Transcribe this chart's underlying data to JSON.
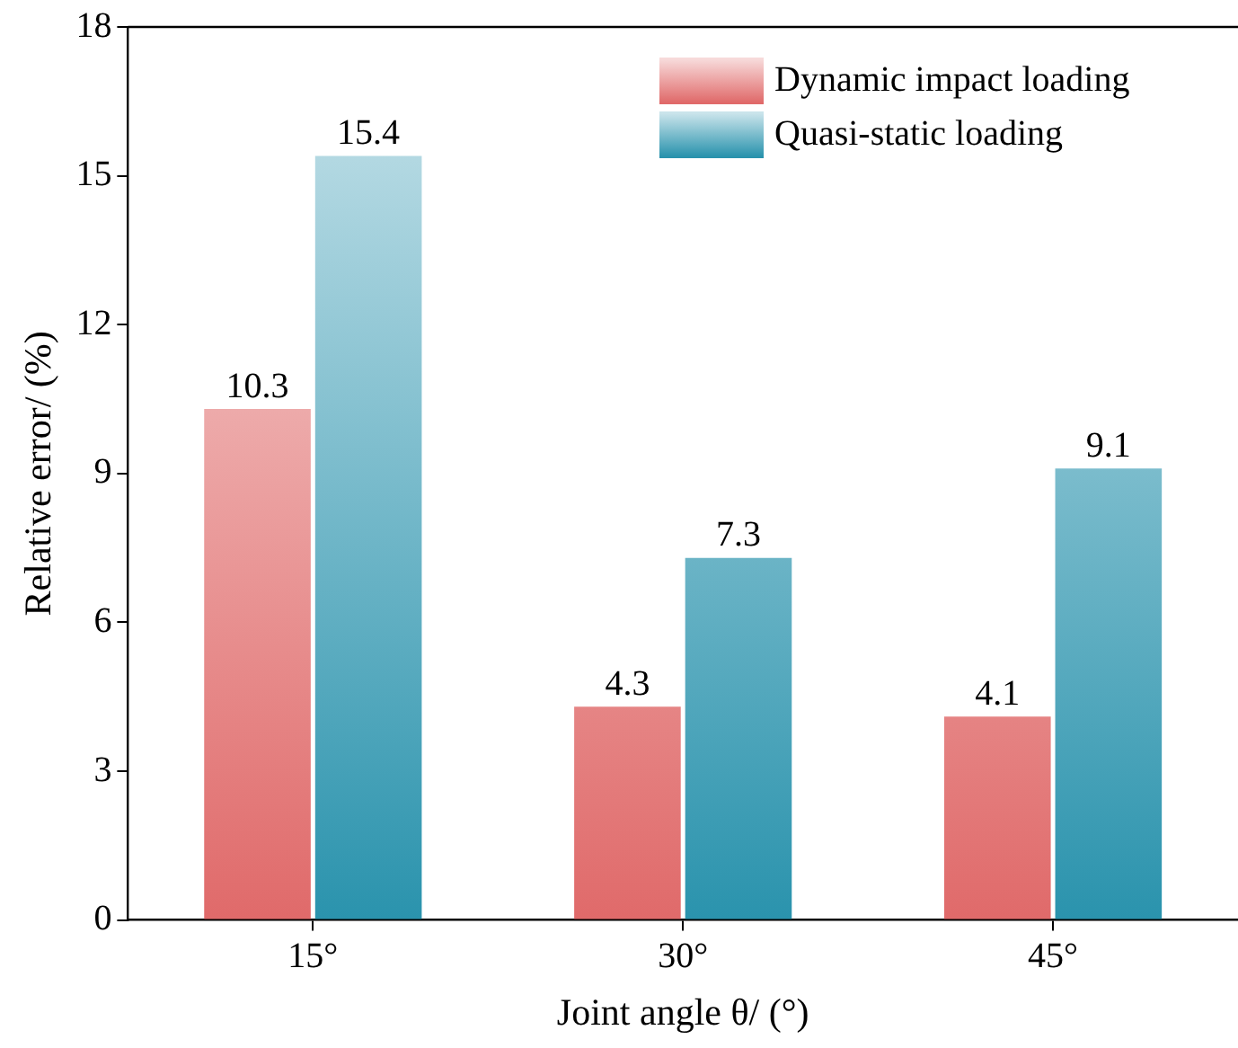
{
  "chart_data": {
    "type": "bar",
    "xlabel": "Joint angle θ/ (°)",
    "ylabel": "Relative error/ (%)",
    "categories": [
      "15°",
      "30°",
      "45°"
    ],
    "series": [
      {
        "name": "Dynamic impact loading",
        "color": "#e06a6a",
        "values": [
          10.3,
          4.3,
          4.1
        ]
      },
      {
        "name": "Quasi-static loading",
        "color": "#2a93ad",
        "values": [
          15.4,
          7.3,
          9.1
        ]
      }
    ],
    "ylim": [
      0,
      18
    ],
    "yticks": [
      0,
      3,
      6,
      9,
      12,
      15,
      18
    ],
    "grid": false,
    "legend": "top right",
    "data_labels": true
  }
}
